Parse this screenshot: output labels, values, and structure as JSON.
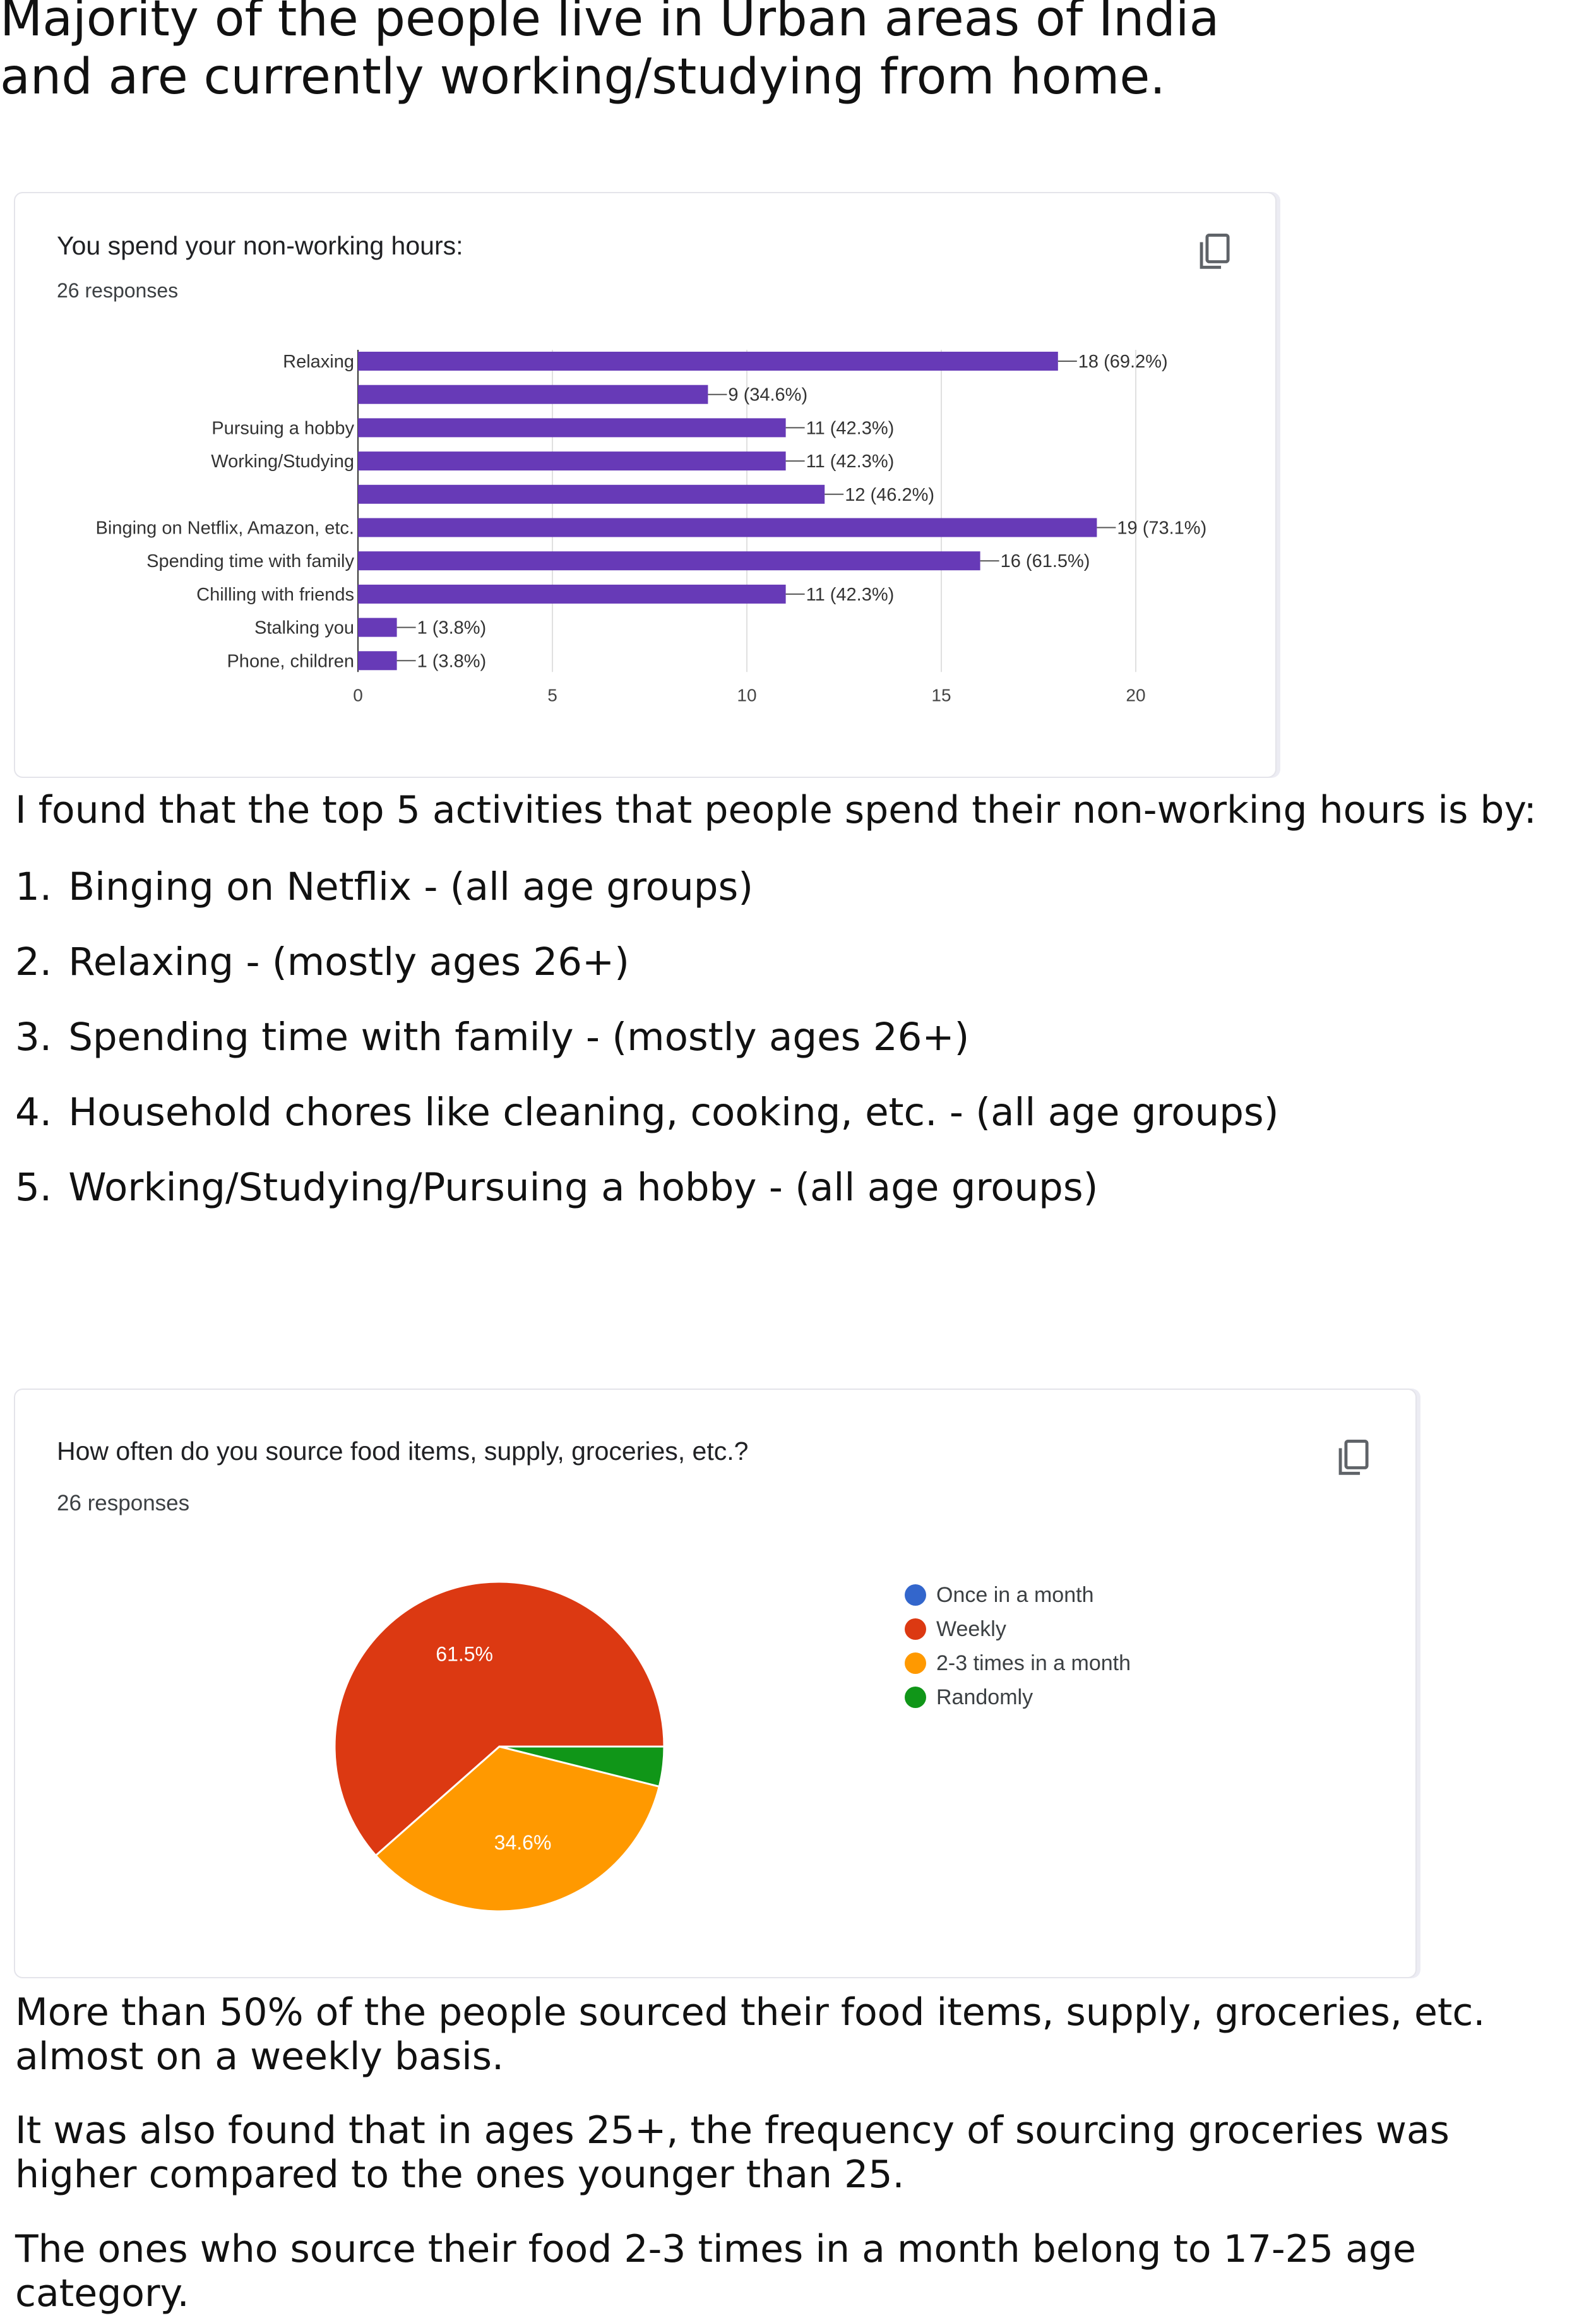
{
  "heading": {
    "line1": "Majority of the people live in Urban areas of India",
    "line2": "and are currently working/studying from  home."
  },
  "bar_card": {
    "title": "You spend your non-working hours:",
    "responses": "26 responses",
    "copy_icon": "copy-icon"
  },
  "bar_chart": {
    "type": "bar",
    "orientation": "horizontal",
    "categories": [
      "Relaxing",
      "",
      "Pursuing a hobby",
      "Working/Studying",
      "",
      "Binging on Netflix, Amazon, etc.",
      "Spending time with family",
      "Chilling with friends",
      "Stalking you",
      "Phone, children"
    ],
    "values": [
      18,
      9,
      11,
      11,
      12,
      19,
      16,
      11,
      1,
      1
    ],
    "value_labels": [
      "18 (69.2%)",
      "9 (34.6%)",
      "11 (42.3%)",
      "11 (42.3%)",
      "12 (46.2%)",
      "19 (73.1%)",
      "16 (61.5%)",
      "11 (42.3%)",
      "1 (3.8%)",
      "1 (3.8%)"
    ],
    "xticks": [
      "0",
      "5",
      "10",
      "15",
      "20"
    ],
    "xlim": [
      0,
      20
    ],
    "grid": true,
    "bar_color": "#673ab7"
  },
  "findings_intro": "I found that the top 5 activities that people spend their non-working hours is by:",
  "findings": [
    {
      "num": "1.",
      "text": "Binging on Netflix  - (all age groups)"
    },
    {
      "num": "2.",
      "text": "Relaxing - (mostly ages 26+)"
    },
    {
      "num": "3.",
      "text": "Spending time with family - (mostly ages 26+)"
    },
    {
      "num": "4.",
      "text": "Household chores like cleaning, cooking, etc.  - (all age groups)"
    },
    {
      "num": "5.",
      "text": "Working/Studying/Pursuing a hobby - (all age groups)"
    }
  ],
  "pie_card": {
    "title": "How often do you source food items, supply, groceries, etc.?",
    "responses": "26 responses",
    "copy_icon": "copy-icon"
  },
  "pie_chart": {
    "type": "pie",
    "slices": [
      {
        "label": "Once in a month",
        "value": 0,
        "color": "#3366cc"
      },
      {
        "label": "Weekly",
        "value": 61.5,
        "pct_label": "61.5%",
        "color": "#dc3912"
      },
      {
        "label": "2-3 times in a month",
        "value": 34.6,
        "pct_label": "34.6%",
        "color": "#ff9900"
      },
      {
        "label": "Randomly",
        "value": 3.9,
        "color": "#109618"
      }
    ],
    "legend_position": "right"
  },
  "conclusion1": "More than 50% of the people sourced their food items, supply, groceries, etc. almost on a weekly basis.",
  "conclusion2": "It was also found that in ages 25+, the frequency of sourcing groceries was higher compared to the ones younger than 25.",
  "conclusion3": "The ones who source their food 2-3 times in a month belong to 17-25 age category."
}
